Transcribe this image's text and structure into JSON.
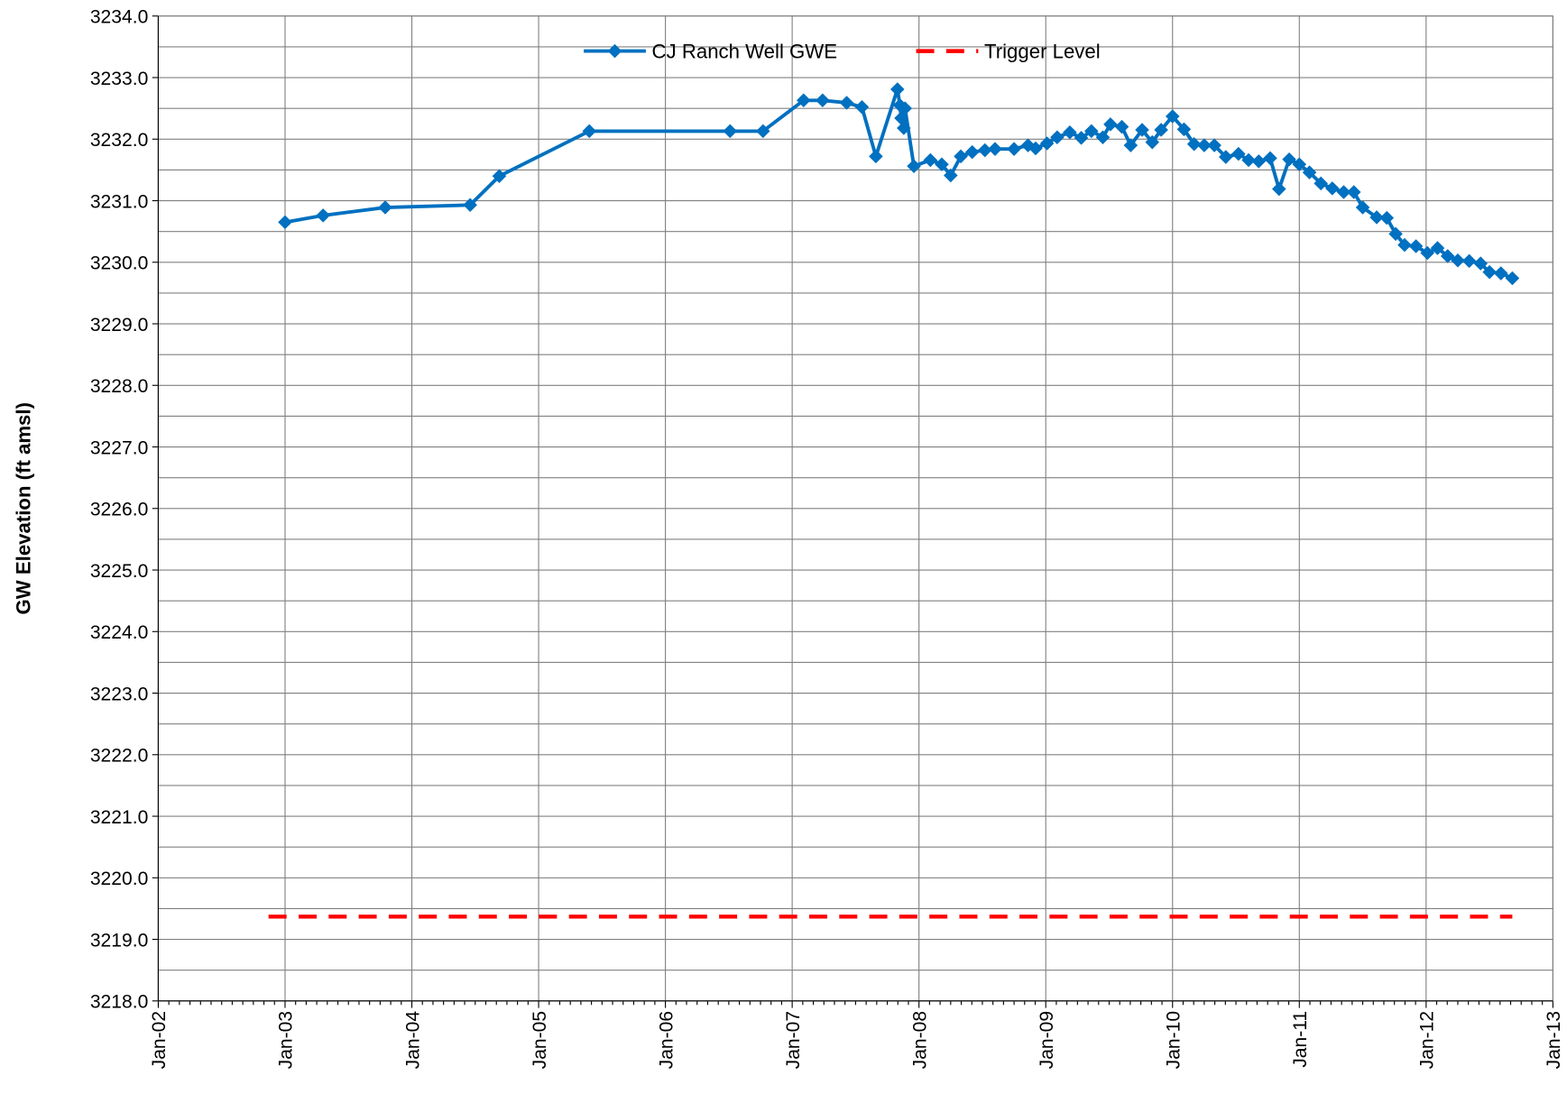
{
  "chart_data": {
    "type": "line",
    "y_label": "GW Elevation (ft amsl)",
    "xlim": [
      2002,
      2013
    ],
    "xticks": [
      {
        "value": 2002,
        "label": "Jan-02"
      },
      {
        "value": 2003,
        "label": "Jan-03"
      },
      {
        "value": 2004,
        "label": "Jan-04"
      },
      {
        "value": 2005,
        "label": "Jan-05"
      },
      {
        "value": 2006,
        "label": "Jan-06"
      },
      {
        "value": 2007,
        "label": "Jan-07"
      },
      {
        "value": 2008,
        "label": "Jan-08"
      },
      {
        "value": 2009,
        "label": "Jan-09"
      },
      {
        "value": 2010,
        "label": "Jan-10"
      },
      {
        "value": 2011,
        "label": "Jan-11"
      },
      {
        "value": 2012,
        "label": "Jan-12"
      },
      {
        "value": 2013,
        "label": "Jan-13"
      }
    ],
    "ylim": [
      3218,
      3234
    ],
    "yticks": [
      {
        "value": 3218,
        "label": "3218.0"
      },
      {
        "value": 3219,
        "label": "3219.0"
      },
      {
        "value": 3220,
        "label": "3220.0"
      },
      {
        "value": 3221,
        "label": "3221.0"
      },
      {
        "value": 3222,
        "label": "3222.0"
      },
      {
        "value": 3223,
        "label": "3223.0"
      },
      {
        "value": 3224,
        "label": "3224.0"
      },
      {
        "value": 3225,
        "label": "3225.0"
      },
      {
        "value": 3226,
        "label": "3226.0"
      },
      {
        "value": 3227,
        "label": "3227.0"
      },
      {
        "value": 3228,
        "label": "3228.0"
      },
      {
        "value": 3229,
        "label": "3229.0"
      },
      {
        "value": 3230,
        "label": "3230.0"
      },
      {
        "value": 3231,
        "label": "3231.0"
      },
      {
        "value": 3232,
        "label": "3232.0"
      },
      {
        "value": 3233,
        "label": "3233.0"
      },
      {
        "value": 3234,
        "label": "3234.0"
      }
    ],
    "minor_yticks": [
      3218.5,
      3219.5,
      3220.5,
      3221.5,
      3222.5,
      3223.5,
      3224.5,
      3225.5,
      3226.5,
      3227.5,
      3228.5,
      3229.5,
      3230.5,
      3231.5,
      3232.5,
      3233.5
    ],
    "grid": true,
    "legend": "top",
    "series": [
      {
        "name": "CJ Ranch Well GWE",
        "color": "#0070c0",
        "marker": "diamond",
        "dash": false,
        "x": [
          2003.0,
          2003.3,
          2003.79,
          2004.46,
          2004.69,
          2005.4,
          2006.51,
          2006.77,
          2007.09,
          2007.24,
          2007.43,
          2007.55,
          2007.66,
          2007.83,
          2007.85,
          2007.86,
          2007.88,
          2007.89,
          2007.96,
          2008.09,
          2008.18,
          2008.25,
          2008.33,
          2008.42,
          2008.52,
          2008.6,
          2008.75,
          2008.86,
          2008.92,
          2009.01,
          2009.09,
          2009.19,
          2009.28,
          2009.36,
          2009.45,
          2009.51,
          2009.6,
          2009.67,
          2009.76,
          2009.84,
          2009.91,
          2010.0,
          2010.09,
          2010.17,
          2010.25,
          2010.33,
          2010.42,
          2010.52,
          2010.6,
          2010.68,
          2010.77,
          2010.84,
          2010.92,
          2011.0,
          2011.08,
          2011.17,
          2011.26,
          2011.35,
          2011.43,
          2011.5,
          2011.61,
          2011.69,
          2011.76,
          2011.83,
          2011.92,
          2012.01,
          2012.09,
          2012.17,
          2012.25,
          2012.34,
          2012.43,
          2012.5,
          2012.59,
          2012.68
        ],
        "values": [
          3230.65,
          3230.76,
          3230.89,
          3230.93,
          3231.4,
          3232.13,
          3232.13,
          3232.13,
          3232.63,
          3232.63,
          3232.59,
          3232.52,
          3231.72,
          3232.81,
          3232.55,
          3232.34,
          3232.18,
          3232.5,
          3231.56,
          3231.66,
          3231.59,
          3231.41,
          3231.72,
          3231.79,
          3231.82,
          3231.84,
          3231.84,
          3231.9,
          3231.85,
          3231.93,
          3232.03,
          3232.11,
          3232.02,
          3232.13,
          3232.03,
          3232.24,
          3232.2,
          3231.9,
          3232.15,
          3231.95,
          3232.15,
          3232.37,
          3232.16,
          3231.92,
          3231.9,
          3231.9,
          3231.71,
          3231.76,
          3231.66,
          3231.64,
          3231.69,
          3231.19,
          3231.67,
          3231.59,
          3231.46,
          3231.28,
          3231.2,
          3231.14,
          3231.14,
          3230.89,
          3230.73,
          3230.72,
          3230.46,
          3230.28,
          3230.26,
          3230.15,
          3230.23,
          3230.1,
          3230.03,
          3230.02,
          3229.98,
          3229.84,
          3229.82,
          3229.74
        ]
      },
      {
        "name": "Trigger Level",
        "color": "#ff0000",
        "marker": "none",
        "dash": true,
        "x": [
          2002.87,
          2012.68
        ],
        "values": [
          3219.37,
          3219.37
        ]
      }
    ]
  }
}
